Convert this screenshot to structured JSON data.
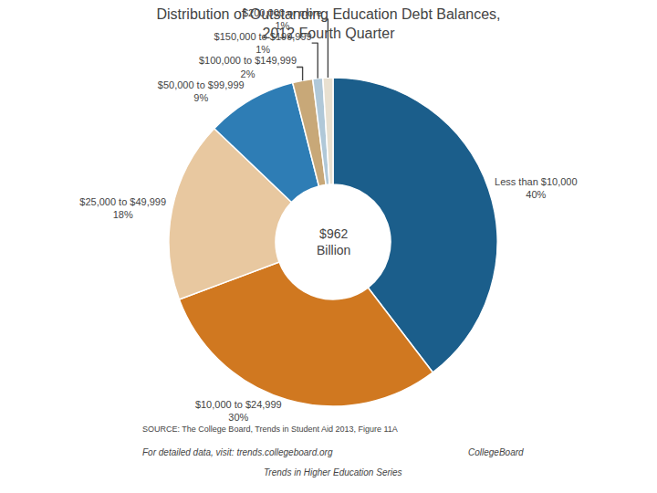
{
  "chart_data": {
    "type": "pie",
    "title": "Distribution of Outstanding Education Debt Balances,\n2012 Fourth Quarter",
    "categories": [
      "Less than $10,000",
      "$10,000 to $24,999",
      "$25,000 to $49,999",
      "$50,000 to $99,999",
      "$100,000 to $149,999",
      "$150,000 to $199,999",
      "$200,000 or more"
    ],
    "values": [
      40,
      30,
      18,
      9,
      2,
      1,
      1
    ],
    "value_labels": [
      "40%",
      "30%",
      "18%",
      "9%",
      "2%",
      "1%",
      "1%"
    ],
    "colors": [
      "#1b5e8b",
      "#d07820",
      "#e8c8a0",
      "#2e7db5",
      "#c8a878",
      "#b0c8d8",
      "#e8e0d0"
    ],
    "data_labels": true,
    "annotations": [
      "$962\nBillion",
      "SOURCE: The College Board, Trends in Student Aid 2013, Figure 11A",
      "For detailed data, visit: trends.collegeboard.org",
      "Trends in Higher Education Series",
      "CollegeBoard"
    ]
  }
}
